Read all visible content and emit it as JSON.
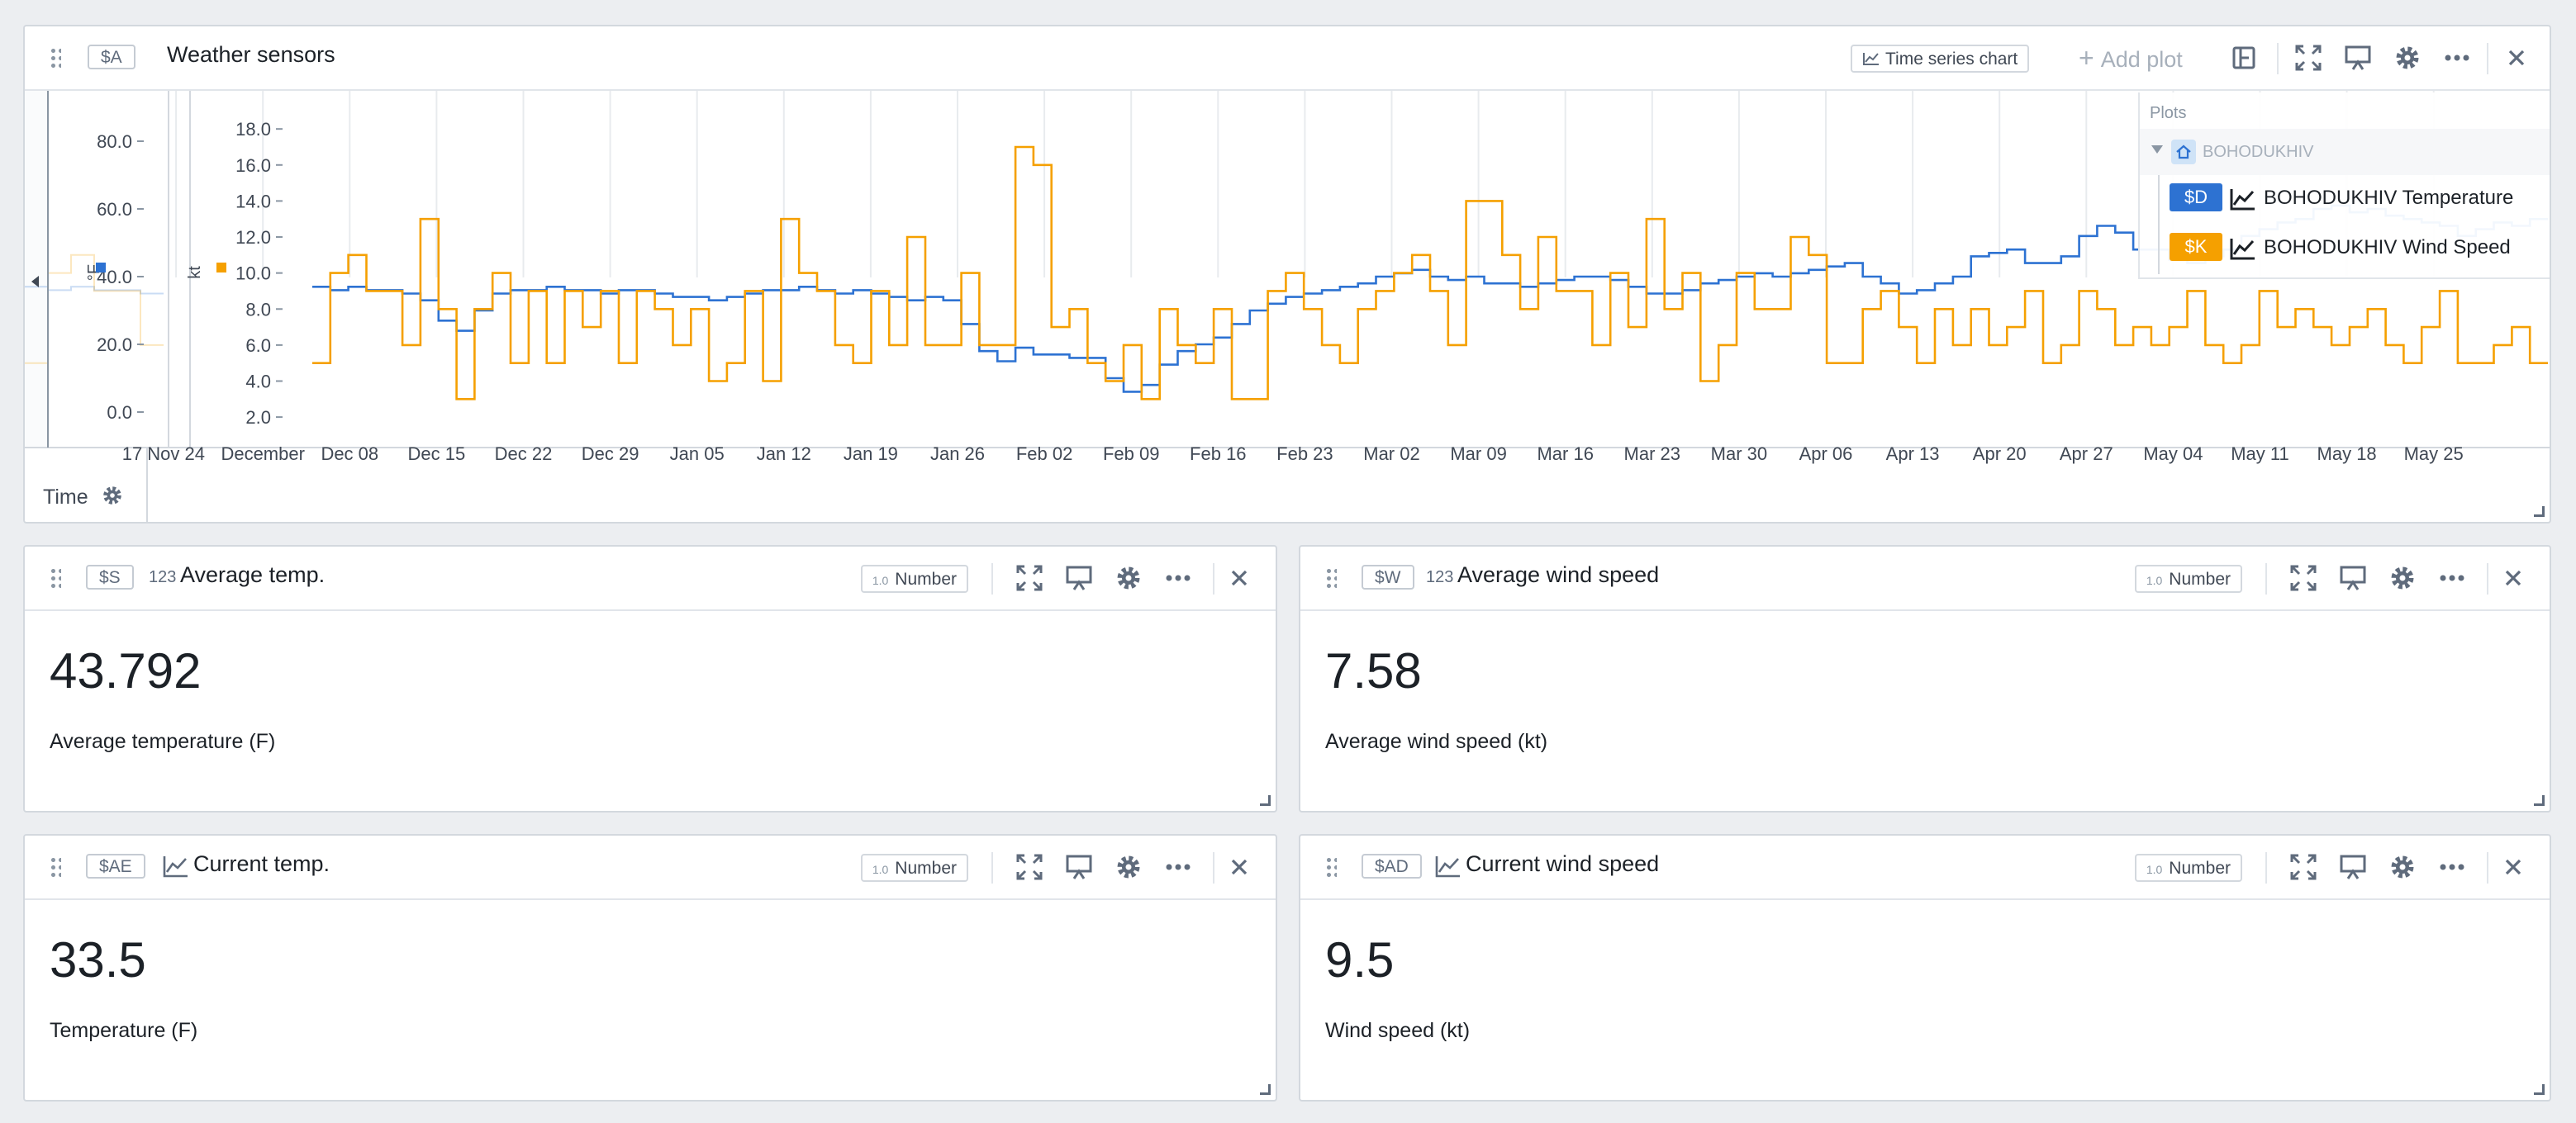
{
  "main_card": {
    "tag": "$A",
    "title": "Weather sensors",
    "viz_type": "Time series chart",
    "add_plot_label": "Add plot",
    "time_label": "Time"
  },
  "plots_panel": {
    "header": "Plots",
    "group": "BOHODUKHIV",
    "items": [
      {
        "tag": "$D",
        "label": "BOHODUKHIV Temperature",
        "color": "#2d72d2"
      },
      {
        "tag": "$K",
        "label": "BOHODUKHIV Wind Speed",
        "color": "#f5a000"
      }
    ]
  },
  "chart_data": {
    "type": "line",
    "x_ticks": [
      "17",
      "Nov 24",
      "December",
      "Dec 08",
      "Dec 15",
      "Dec 22",
      "Dec 29",
      "Jan 05",
      "Jan 12",
      "Jan 19",
      "Jan 26",
      "Feb 02",
      "Feb 09",
      "Feb 16",
      "Feb 23",
      "Mar 02",
      "Mar 09",
      "Mar 16",
      "Mar 23",
      "Mar 30",
      "Apr 06",
      "Apr 13",
      "Apr 20",
      "Apr 27",
      "May 04",
      "May 11",
      "May 18",
      "May 25"
    ],
    "axes": [
      {
        "unit": "°F",
        "ticks": [
          "80.0",
          "60.0",
          "40.0",
          "20.0",
          "0.0"
        ],
        "ylim": [
          -10,
          90
        ],
        "color": "#2d72d2"
      },
      {
        "unit": "kt",
        "ticks": [
          "18.0",
          "16.0",
          "14.0",
          "12.0",
          "10.0",
          "8.0",
          "6.0",
          "4.0",
          "2.0"
        ],
        "ylim": [
          0.4,
          19.2
        ],
        "color": "#f5a000"
      }
    ],
    "series": [
      {
        "name": "BOHODUKHIV Temperature",
        "axis": 0,
        "color": "#2d72d2",
        "values": [
          37,
          36,
          37,
          36,
          36,
          35,
          33,
          27,
          24,
          30,
          35,
          36,
          36,
          37,
          36,
          36,
          35,
          36,
          36,
          35,
          34,
          34,
          33,
          34,
          35,
          36,
          36,
          37,
          36,
          35,
          36,
          35,
          34,
          33,
          34,
          33,
          26,
          18,
          15,
          19,
          17,
          17,
          16,
          16,
          10,
          6,
          8,
          14,
          18,
          20,
          22,
          26,
          30,
          32,
          34,
          35,
          36,
          37,
          38,
          40,
          41,
          42,
          40,
          39,
          40,
          38,
          38,
          37,
          38,
          39,
          40,
          40,
          39,
          37,
          35,
          35,
          36,
          38,
          39,
          40,
          41,
          40,
          41,
          42,
          43,
          44,
          40,
          38,
          35,
          36,
          38,
          40,
          46,
          47,
          48,
          44,
          44,
          46,
          52,
          55,
          53,
          48,
          48,
          45,
          44,
          46,
          48,
          52,
          54,
          56,
          57,
          60,
          61,
          59,
          60,
          58,
          57,
          56,
          55,
          52,
          54,
          56,
          55,
          57
        ]
      },
      {
        "name": "BOHODUKHIV Wind Speed",
        "axis": 1,
        "color": "#f5a000",
        "values": [
          5,
          10,
          11,
          9,
          9,
          6,
          13,
          8,
          3,
          8,
          10,
          5,
          9,
          5,
          9,
          7,
          9,
          5,
          9,
          8,
          6,
          8,
          4,
          5,
          9,
          4,
          13,
          10,
          9,
          6,
          5,
          9,
          6,
          12,
          6,
          6,
          10,
          6,
          6,
          17,
          16,
          7,
          8,
          5,
          4,
          6,
          3,
          8,
          6,
          5,
          8,
          3,
          3,
          9,
          10,
          8,
          6,
          5,
          8,
          9,
          10,
          11,
          9,
          6,
          14,
          14,
          11,
          8,
          12,
          9,
          9,
          6,
          10,
          7,
          13,
          8,
          10,
          4,
          6,
          10,
          8,
          8,
          12,
          11,
          5,
          5,
          8,
          9,
          7,
          5,
          8,
          6,
          8,
          6,
          7,
          9,
          5,
          6,
          9,
          8,
          6,
          7,
          6,
          7,
          9,
          6,
          5,
          6,
          9,
          7,
          8,
          7,
          6,
          7,
          8,
          6,
          5,
          7,
          9,
          5,
          5,
          6,
          7,
          5
        ]
      }
    ]
  },
  "cards": [
    {
      "tag": "$S",
      "type_icon": "123",
      "title": "Average temp.",
      "viz_pre": "1.0",
      "viz": "Number",
      "value": "43.792",
      "caption": "Average temperature (F)"
    },
    {
      "tag": "$W",
      "type_icon": "123",
      "title": "Average wind speed",
      "viz_pre": "1.0",
      "viz": "Number",
      "value": "7.58",
      "caption": "Average wind speed (kt)"
    },
    {
      "tag": "$AE",
      "type_icon": "line-chart-icon",
      "title": "Current temp.",
      "viz_pre": "1.0",
      "viz": "Number",
      "value": "33.5",
      "caption": "Temperature (F)"
    },
    {
      "tag": "$AD",
      "type_icon": "line-chart-icon",
      "title": "Current wind speed",
      "viz_pre": "1.0",
      "viz": "Number",
      "value": "9.5",
      "caption": "Wind speed (kt)"
    }
  ]
}
